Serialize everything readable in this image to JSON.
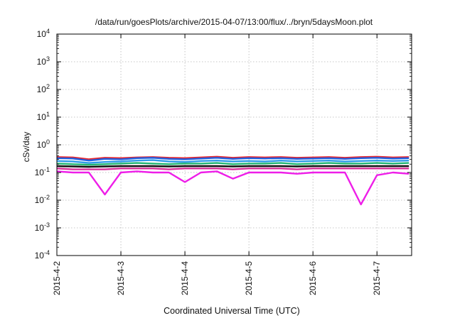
{
  "chart_data": {
    "type": "line",
    "title": "/data/run/goesPlots/archive/2015-04-07/13:00/flux/../bryn/5daysMoon.plot",
    "xlabel": "Coordinated Universal Time (UTC)",
    "ylabel": "cSv/day",
    "yscale": "log",
    "ylim": [
      0.0001,
      10000
    ],
    "xlim": [
      "2015-04-02",
      "2015-04-07 13:00"
    ],
    "grid": true,
    "x_ticks": [
      "2015-4-2",
      "2015-4-3",
      "2015-4-4",
      "2015-4-5",
      "2015-4-6",
      "2015-4-7"
    ],
    "y_ticks": [
      {
        "base": "10",
        "exp": "-4",
        "value": 0.0001
      },
      {
        "base": "10",
        "exp": "-3",
        "value": 0.001
      },
      {
        "base": "10",
        "exp": "-2",
        "value": 0.01
      },
      {
        "base": "10",
        "exp": "-1",
        "value": 0.1
      },
      {
        "base": "10",
        "exp": "0",
        "value": 1
      },
      {
        "base": "10",
        "exp": "1",
        "value": 10
      },
      {
        "base": "10",
        "exp": "2",
        "value": 100
      },
      {
        "base": "10",
        "exp": "3",
        "value": 1000
      },
      {
        "base": "10",
        "exp": "4",
        "value": 10000
      }
    ],
    "x": [
      "2015-04-02 00:00",
      "2015-04-02 06:00",
      "2015-04-02 12:00",
      "2015-04-02 18:00",
      "2015-04-03 00:00",
      "2015-04-03 06:00",
      "2015-04-03 12:00",
      "2015-04-03 18:00",
      "2015-04-04 00:00",
      "2015-04-04 06:00",
      "2015-04-04 12:00",
      "2015-04-04 18:00",
      "2015-04-05 00:00",
      "2015-04-05 06:00",
      "2015-04-05 12:00",
      "2015-04-05 18:00",
      "2015-04-06 00:00",
      "2015-04-06 06:00",
      "2015-04-06 12:00",
      "2015-04-06 18:00",
      "2015-04-07 00:00",
      "2015-04-07 06:00",
      "2015-04-07 12:00"
    ],
    "series": [
      {
        "color": "#e8242c",
        "values": [
          0.36,
          0.35,
          0.3,
          0.34,
          0.33,
          0.35,
          0.36,
          0.34,
          0.33,
          0.35,
          0.37,
          0.34,
          0.36,
          0.35,
          0.36,
          0.34,
          0.35,
          0.36,
          0.34,
          0.36,
          0.37,
          0.35,
          0.36
        ]
      },
      {
        "color": "#1f5fe0",
        "values": [
          0.33,
          0.32,
          0.27,
          0.31,
          0.3,
          0.33,
          0.34,
          0.31,
          0.3,
          0.32,
          0.34,
          0.31,
          0.33,
          0.32,
          0.33,
          0.31,
          0.32,
          0.33,
          0.31,
          0.33,
          0.34,
          0.32,
          0.33
        ]
      },
      {
        "color": "#2f9be8",
        "values": [
          0.26,
          0.25,
          0.22,
          0.24,
          0.25,
          0.27,
          0.28,
          0.25,
          0.24,
          0.26,
          0.27,
          0.25,
          0.26,
          0.25,
          0.27,
          0.25,
          0.26,
          0.27,
          0.25,
          0.26,
          0.27,
          0.26,
          0.27
        ]
      },
      {
        "color": "#21b573",
        "values": [
          0.21,
          0.2,
          0.19,
          0.2,
          0.21,
          0.22,
          0.21,
          0.2,
          0.21,
          0.21,
          0.22,
          0.2,
          0.21,
          0.21,
          0.22,
          0.2,
          0.21,
          0.22,
          0.21,
          0.21,
          0.22,
          0.21,
          0.22
        ]
      },
      {
        "color": "#111111",
        "values": [
          0.17,
          0.165,
          0.16,
          0.165,
          0.17,
          0.17,
          0.17,
          0.165,
          0.17,
          0.17,
          0.17,
          0.165,
          0.17,
          0.17,
          0.17,
          0.165,
          0.17,
          0.17,
          0.17,
          0.17,
          0.17,
          0.17,
          0.17
        ]
      },
      {
        "color": "#d8309a",
        "values": [
          0.14,
          0.13,
          0.13,
          0.13,
          0.14,
          0.14,
          0.14,
          0.13,
          0.14,
          0.14,
          0.14,
          0.13,
          0.14,
          0.14,
          0.14,
          0.13,
          0.14,
          0.14,
          0.14,
          0.14,
          0.14,
          0.14,
          0.14
        ]
      },
      {
        "color": "#ee1ee8",
        "values": [
          0.11,
          0.1,
          0.1,
          0.016,
          0.1,
          0.11,
          0.1,
          0.1,
          0.045,
          0.1,
          0.11,
          0.06,
          0.1,
          0.1,
          0.1,
          0.09,
          0.1,
          0.1,
          0.1,
          0.007,
          0.08,
          0.1,
          0.09
        ]
      }
    ]
  }
}
